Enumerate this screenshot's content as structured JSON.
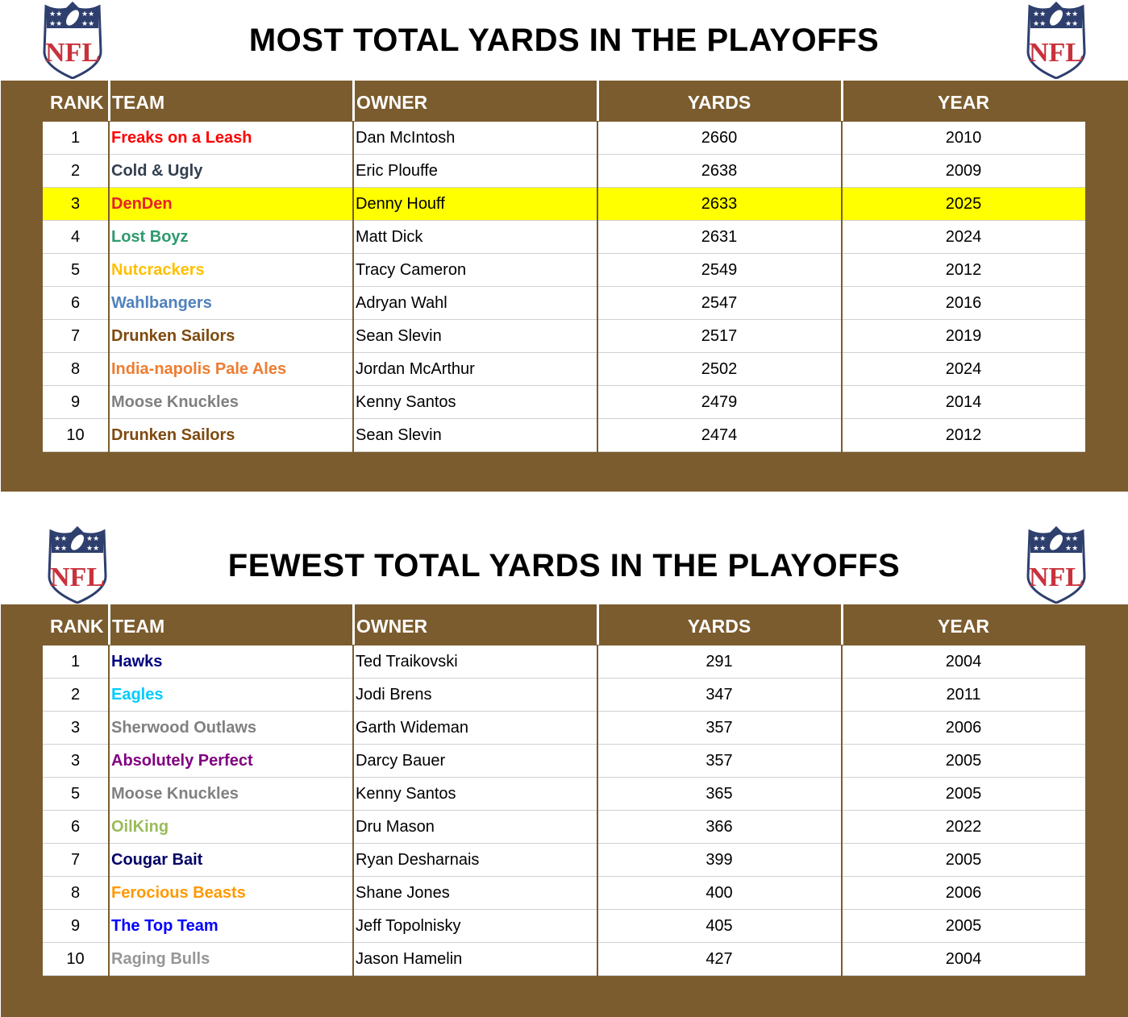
{
  "colors": {
    "brown": "#7B5C2E",
    "highlight": "#FFFF00"
  },
  "logo": {
    "icon": "nfl-shield-logo",
    "text": "NFL"
  },
  "headers": [
    "RANK",
    "TEAM",
    "OWNER",
    "YARDS",
    "YEAR"
  ],
  "tables": [
    {
      "title": "MOST TOTAL YARDS IN THE PLAYOFFS",
      "rows": [
        {
          "rank": "1",
          "team": "Freaks on a Leash",
          "team_color": "#FF0000",
          "owner": "Dan McIntosh",
          "yards": "2660",
          "year": "2010"
        },
        {
          "rank": "2",
          "team": "Cold & Ugly",
          "team_color": "#333F4F",
          "owner": "Eric Plouffe",
          "yards": "2638",
          "year": "2009"
        },
        {
          "rank": "3",
          "team": "DenDen",
          "team_color": "#E8202A",
          "owner": "Denny Houff",
          "yards": "2633",
          "year": "2025",
          "highlight": true
        },
        {
          "rank": "4",
          "team": "Lost Boyz",
          "team_color": "#2E9A6E",
          "owner": "Matt Dick",
          "yards": "2631",
          "year": "2024"
        },
        {
          "rank": "5",
          "team": "Nutcrackers",
          "team_color": "#FFC000",
          "owner": "Tracy Cameron",
          "yards": "2549",
          "year": "2012"
        },
        {
          "rank": "6",
          "team": "Wahlbangers",
          "team_color": "#4F81BD",
          "owner": "Adryan Wahl",
          "yards": "2547",
          "year": "2016"
        },
        {
          "rank": "7",
          "team": "Drunken Sailors",
          "team_color": "#7F4A0F",
          "owner": "Sean Slevin",
          "yards": "2517",
          "year": "2019"
        },
        {
          "rank": "8",
          "team": "India-napolis Pale Ales",
          "team_color": "#ED7D31",
          "owner": "Jordan McArthur",
          "yards": "2502",
          "year": "2024"
        },
        {
          "rank": "9",
          "team": "Moose Knuckles",
          "team_color": "#808080",
          "owner": "Kenny Santos",
          "yards": "2479",
          "year": "2014"
        },
        {
          "rank": "10",
          "team": "Drunken Sailors",
          "team_color": "#7F4A0F",
          "owner": "Sean Slevin",
          "yards": "2474",
          "year": "2012"
        }
      ]
    },
    {
      "title": "FEWEST TOTAL YARDS IN THE PLAYOFFS",
      "rows": [
        {
          "rank": "1",
          "team": "Hawks",
          "team_color": "#000080",
          "owner": "Ted Traikovski",
          "yards": "291",
          "year": "2004"
        },
        {
          "rank": "2",
          "team": "Eagles",
          "team_color": "#00CCFF",
          "owner": "Jodi Brens",
          "yards": "347",
          "year": "2011"
        },
        {
          "rank": "3",
          "team": "Sherwood Outlaws",
          "team_color": "#808080",
          "owner": "Garth Wideman",
          "yards": "357",
          "year": "2006"
        },
        {
          "rank": "3",
          "team": "Absolutely Perfect",
          "team_color": "#800080",
          "owner": "Darcy Bauer",
          "yards": "357",
          "year": "2005"
        },
        {
          "rank": "5",
          "team": "Moose Knuckles",
          "team_color": "#808080",
          "owner": "Kenny Santos",
          "yards": "365",
          "year": "2005"
        },
        {
          "rank": "6",
          "team": "OilKing",
          "team_color": "#9BBB59",
          "owner": "Dru Mason",
          "yards": "366",
          "year": "2022"
        },
        {
          "rank": "7",
          "team": "Cougar Bait",
          "team_color": "#000066",
          "owner": "Ryan Desharnais",
          "yards": "399",
          "year": "2005"
        },
        {
          "rank": "8",
          "team": "Ferocious Beasts",
          "team_color": "#FF9900",
          "owner": "Shane Jones",
          "yards": "400",
          "year": "2006"
        },
        {
          "rank": "9",
          "team": "The Top Team",
          "team_color": "#0000FF",
          "owner": "Jeff Topolnisky",
          "yards": "405",
          "year": "2005"
        },
        {
          "rank": "10",
          "team": "Raging Bulls",
          "team_color": "#969696",
          "owner": "Jason Hamelin",
          "yards": "427",
          "year": "2004"
        }
      ]
    }
  ]
}
